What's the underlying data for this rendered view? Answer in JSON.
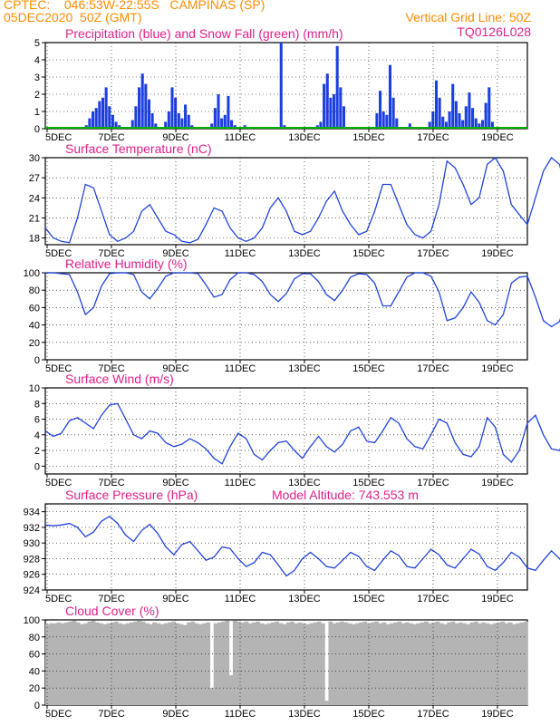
{
  "header": {
    "line1": "CPTEC:    046:53W-22:55S   CAMPINAS (SP)",
    "line2": "05DEC2020  50Z (GMT)",
    "vgrid": "Vertical Grid Line: 50Z",
    "code": "TQ0126L028"
  },
  "colors": {
    "header": "#ff8c00",
    "title": "#e0208a",
    "precip": "#1d3fe0",
    "snow": "#00b000",
    "line": "#2244dd",
    "cloud": "#b4b4b4",
    "grid": "#000000"
  },
  "x_ticks": [
    "5DEC",
    "7DEC",
    "9DEC",
    "11DEC",
    "13DEC",
    "15DEC",
    "17DEC",
    "19DEC"
  ],
  "chart_data": [
    {
      "type": "bar",
      "title": "Precipitation (blue) and Snow Fall (green) (mm/h)",
      "ylim": [
        0,
        5
      ],
      "yticks": [
        "0",
        "1",
        "2",
        "3",
        "4",
        "5"
      ],
      "x_start_day": 5,
      "x_end_day": 20,
      "x_step_h": 6,
      "series": [
        {
          "name": "Precipitation (blue)",
          "values": [
            0,
            0,
            0,
            0,
            0,
            0,
            0,
            0,
            0,
            0,
            0,
            0,
            0.2,
            0.6,
            1.0,
            1.2,
            1.6,
            1.8,
            2.4,
            1.3,
            0.8,
            0.4,
            0.2,
            0,
            0,
            0,
            0.5,
            1.3,
            2.4,
            3.2,
            2.6,
            1.7,
            0.9,
            0.3,
            0,
            0,
            0.4,
            1.0,
            2.4,
            1.8,
            0.9,
            0.6,
            1.4,
            0.8,
            0.2,
            0,
            0,
            0,
            0,
            0.1,
            0.3,
            1.2,
            2.0,
            0.6,
            0.8,
            1.9,
            0.5,
            0.2,
            0,
            0,
            0.2,
            0,
            0,
            0,
            0.1,
            0,
            0,
            0,
            0,
            0,
            0,
            5.0,
            0.2,
            0,
            0,
            0,
            0,
            0,
            0,
            0,
            0,
            0,
            0.2,
            0.4,
            2.6,
            3.2,
            1.8,
            2.0,
            4.8,
            2.4,
            1.3,
            0,
            0,
            0,
            0,
            0,
            0,
            0,
            0,
            0,
            0.9,
            2.2,
            1.0,
            0.8,
            3.7,
            1.8,
            0.6,
            0,
            0,
            0,
            0.3,
            0,
            0,
            0,
            0,
            0,
            0.4,
            1.0,
            2.8,
            1.8,
            0.7,
            0.4,
            1.0,
            2.6,
            1.6,
            0.9,
            0.5,
            1.3,
            2.1,
            1.2,
            0.6,
            0.3,
            0.5,
            1.5,
            2.4,
            0.4,
            0,
            0,
            0,
            0,
            0,
            0,
            0,
            0,
            0,
            0
          ]
        },
        {
          "name": "Snow Fall (green)",
          "values": [
            0
          ]
        }
      ]
    },
    {
      "type": "line",
      "title": "Surface Temperature (nC)",
      "ylim": [
        17,
        30
      ],
      "yticks": [
        "18",
        "21",
        "24",
        "27",
        "30"
      ],
      "x_start_day": 5,
      "x_end_day": 20,
      "x_step_h": 6,
      "series": [
        {
          "values": [
            19.5,
            18,
            17.5,
            17.3,
            21,
            26,
            25.5,
            22,
            18.5,
            17.5,
            18,
            19,
            22,
            23,
            21,
            19,
            18.5,
            17.5,
            17.3,
            17.8,
            20,
            22.5,
            22,
            19.5,
            18,
            17.5,
            18,
            19.5,
            22.5,
            24,
            22,
            19,
            18.5,
            19,
            21,
            23.5,
            25,
            22,
            20,
            18.5,
            19,
            22,
            26,
            26,
            23,
            20,
            18.5,
            18,
            19,
            23,
            29.5,
            28.5,
            26,
            23,
            24,
            29,
            30,
            28,
            23,
            21.5,
            20,
            24,
            28,
            30,
            29,
            24,
            21,
            20,
            20.5,
            23.5,
            28,
            27,
            23,
            20.5,
            19.5,
            21,
            24,
            27.5,
            27,
            24,
            22,
            20,
            21,
            25,
            28,
            27,
            24,
            22,
            21,
            21.5,
            24,
            27.5,
            27,
            24,
            21.5,
            20.5,
            21.5,
            24.5,
            26.5,
            26,
            23.5,
            21.5,
            20.5,
            21.5,
            24,
            26,
            25.5,
            23,
            21,
            20.5,
            21.5,
            24,
            26.5,
            26.5,
            23,
            20.5,
            19.5,
            20.5,
            24,
            26.5,
            25.5,
            22,
            20,
            19
          ]
        }
      ]
    },
    {
      "type": "line",
      "title": "Relative Humidity (%)",
      "ylim": [
        0,
        100
      ],
      "yticks": [
        "0",
        "20",
        "40",
        "60",
        "80",
        "100"
      ],
      "x_start_day": 5,
      "x_end_day": 20,
      "x_step_h": 6,
      "series": [
        {
          "values": [
            100,
            100,
            99,
            98,
            78,
            52,
            60,
            85,
            99,
            100,
            100,
            98,
            78,
            70,
            82,
            96,
            100,
            100,
            100,
            99,
            86,
            72,
            75,
            92,
            100,
            100,
            98,
            90,
            75,
            67,
            76,
            93,
            99,
            99,
            90,
            75,
            68,
            80,
            95,
            99,
            98,
            88,
            62,
            62,
            78,
            95,
            100,
            100,
            96,
            78,
            45,
            48,
            60,
            78,
            66,
            45,
            40,
            52,
            88,
            95,
            96,
            72,
            45,
            38,
            44,
            75,
            95,
            96,
            93,
            68,
            45,
            52,
            85,
            98,
            99,
            88,
            60,
            40,
            42,
            68,
            92,
            99,
            94,
            66,
            45,
            48,
            70,
            92,
            98,
            96,
            78,
            55,
            56,
            78,
            95,
            99,
            96,
            72,
            60,
            62,
            82,
            96,
            99,
            96,
            78,
            62,
            62,
            78,
            94,
            98,
            92,
            75,
            60,
            58,
            72,
            92,
            99,
            100,
            80,
            58,
            60,
            88,
            100,
            100
          ]
        }
      ]
    },
    {
      "type": "line",
      "title": "Surface Wind (m/s)",
      "ylim": [
        -1,
        10
      ],
      "yticks": [
        "0",
        "2",
        "4",
        "6",
        "8",
        "10"
      ],
      "x_start_day": 5,
      "x_end_day": 20,
      "x_step_h": 6,
      "series": [
        {
          "values": [
            4.5,
            3.8,
            4.2,
            5.8,
            6.2,
            5.5,
            4.8,
            6.5,
            7.8,
            8.0,
            6.0,
            4.0,
            3.5,
            4.5,
            4.2,
            3.0,
            2.5,
            2.8,
            3.5,
            3.0,
            2.2,
            1.0,
            0.3,
            2.5,
            4.2,
            3.5,
            1.5,
            0.8,
            2.0,
            3.0,
            3.2,
            2.0,
            1.0,
            2.5,
            3.8,
            2.5,
            1.8,
            2.8,
            4.5,
            5.0,
            3.2,
            3.0,
            4.5,
            6.2,
            5.5,
            3.5,
            2.5,
            2.2,
            4.0,
            6.0,
            5.5,
            3.0,
            1.5,
            1.2,
            2.5,
            6.2,
            5.0,
            1.5,
            0.5,
            2.0,
            5.5,
            6.5,
            4.0,
            2.2,
            2.0,
            4.0,
            6.5,
            5.2,
            2.8,
            1.8,
            3.0,
            5.5,
            5.5,
            3.5,
            2.0,
            2.2,
            4.5,
            6.0,
            5.0,
            2.8,
            1.5,
            2.8,
            5.5,
            6.2,
            4.5,
            2.2,
            1.5,
            2.5,
            4.5,
            4.0,
            2.2,
            1.5,
            3.0,
            5.0,
            4.2,
            2.5,
            2.2,
            3.5,
            5.0,
            4.0,
            2.5,
            2.5,
            4.0,
            4.8,
            3.5,
            2.0,
            1.5,
            2.8,
            4.2,
            3.5,
            2.2,
            2.0,
            3.5,
            4.5,
            3.5,
            2.5,
            3.8,
            5.5,
            4.5,
            2.0,
            0.5,
            3.0,
            7.0,
            8.0,
            6.0,
            4.5
          ]
        }
      ]
    },
    {
      "type": "line",
      "title": "Surface Pressure (hPa)",
      "annotation": "Model Altitude: 743.553  m",
      "ylim": [
        924,
        935
      ],
      "yticks": [
        "924",
        "926",
        "928",
        "930",
        "932",
        "934"
      ],
      "x_start_day": 5,
      "x_end_day": 20,
      "x_step_h": 6,
      "series": [
        {
          "values": [
            932.3,
            932.2,
            932.3,
            932.5,
            932.0,
            930.8,
            931.4,
            932.8,
            933.4,
            932.5,
            931.0,
            930.2,
            931.6,
            932.4,
            931.2,
            929.5,
            928.5,
            929.8,
            930.2,
            929.0,
            927.8,
            928.2,
            929.5,
            929.3,
            928.0,
            927.0,
            927.5,
            928.8,
            928.5,
            927.2,
            925.8,
            926.5,
            928.0,
            928.8,
            928.0,
            927.0,
            926.8,
            927.8,
            928.8,
            928.3,
            927.0,
            926.5,
            927.8,
            929.0,
            928.4,
            927.0,
            926.8,
            928.0,
            929.2,
            928.5,
            927.2,
            926.8,
            928.0,
            929.2,
            928.6,
            927.0,
            926.5,
            927.5,
            928.8,
            928.2,
            926.8,
            926.5,
            927.8,
            929.0,
            928.0,
            926.5,
            926.8,
            928.0,
            929.2,
            928.5,
            927.0,
            926.2,
            926.8,
            928.5,
            929.5,
            928.3,
            926.8,
            926.2,
            927.2,
            928.5,
            928.0,
            926.8,
            926.0,
            926.8,
            928.0,
            928.3,
            927.0,
            926.0,
            926.8,
            927.8,
            927.8,
            926.6,
            925.9,
            926.3,
            927.6,
            928.0,
            926.9,
            925.7,
            925.6,
            926.6,
            927.5,
            927.1,
            926.0,
            925.5,
            926.0,
            927.0,
            927.3,
            926.3,
            925.3,
            925.2,
            926.0,
            926.8,
            926.5,
            925.4,
            924.8,
            924.8,
            925.6,
            926.2,
            925.5,
            924.6,
            924.0,
            924.5,
            925.5,
            926.3,
            926.0,
            925.0,
            924.5,
            926.2,
            928.0
          ]
        }
      ]
    },
    {
      "type": "area",
      "title": "Cloud Cover (%)",
      "ylim": [
        0,
        100
      ],
      "yticks": [
        "0",
        "20",
        "40",
        "60",
        "80",
        "100"
      ],
      "x_start_day": 5,
      "x_end_day": 20,
      "x_step_h": 6,
      "series": [
        {
          "values": [
            95,
            96,
            96,
            97,
            96,
            97,
            98,
            99,
            97,
            95,
            96,
            98,
            99,
            97,
            96,
            95,
            96,
            97,
            98,
            96,
            95,
            96,
            97,
            98,
            99,
            98,
            96,
            95,
            97,
            96,
            95,
            96,
            97,
            98,
            96,
            95,
            94,
            97,
            98,
            96,
            95,
            96,
            97,
            20,
            96,
            97,
            98,
            99,
            35,
            99,
            98,
            97,
            98,
            96,
            97,
            98,
            96,
            95,
            96,
            97,
            98,
            96,
            95,
            97,
            98,
            96,
            97,
            96,
            95,
            96,
            97,
            98,
            96,
            5,
            98,
            96,
            97,
            98,
            97,
            96,
            95,
            96,
            97,
            98,
            96,
            97,
            98,
            96,
            97,
            95,
            96,
            97,
            98,
            96,
            97,
            96,
            95,
            96,
            97,
            98,
            96,
            97,
            98,
            96,
            95,
            97,
            98,
            96,
            97,
            96,
            95,
            97,
            98,
            96,
            97,
            96,
            95,
            96,
            97,
            98,
            96,
            97,
            95,
            96,
            97,
            98
          ]
        }
      ]
    }
  ]
}
